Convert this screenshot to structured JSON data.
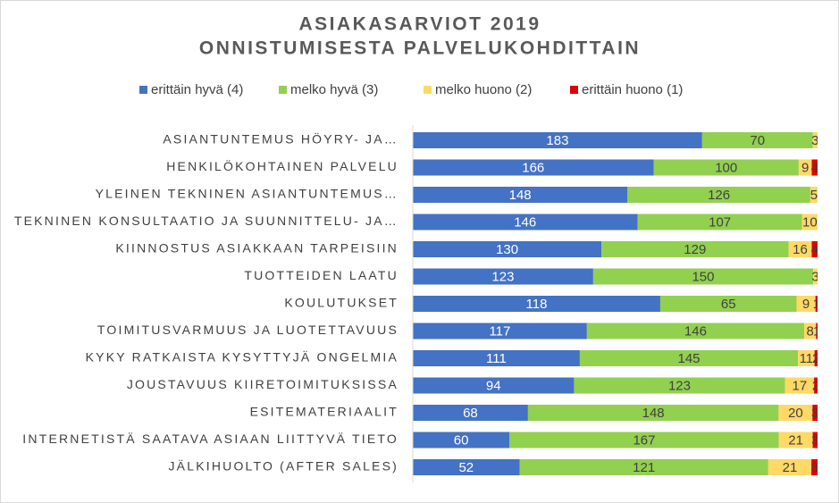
{
  "chart_data": {
    "type": "stacked-bar-100",
    "title": [
      "ASIAKASARVIOT 2019",
      "ONNISTUMISESTA PALVELUKOHDITTAIN"
    ],
    "categories": [
      "ASIANTUNTEMUS HÖYRY- JA…",
      "HENKILÖKOHTAINEN PALVELU",
      "YLEINEN TEKNINEN ASIANTUNTEMUS…",
      "TEKNINEN KONSULTAATIO JA SUUNNITTELU- JA…",
      "KIINNOSTUS ASIAKKAAN TARPEISIIN",
      "TUOTTEIDEN LAATU",
      "KOULUTUKSET",
      "TOIMITUSVARMUUS JA LUOTETTAVUUS",
      "KYKY RATKAISTA KYSYTTYJÄ ONGELMIA",
      "JOUSTAVUUS KIIRETOIMITUKSISSA",
      "ESITEMATERIAALIT",
      "INTERNETISTÄ SAATAVA ASIAAN LIITTYVÄ TIETO",
      "JÄLKIHUOLTO (AFTER SALES)"
    ],
    "series": [
      {
        "name": "erittäin hyvä (4)",
        "color": "#4472c4",
        "label_color": "#ffffff",
        "values": [
          183,
          166,
          148,
          146,
          130,
          123,
          118,
          117,
          111,
          94,
          68,
          60,
          52
        ]
      },
      {
        "name": "melko hyvä (3)",
        "color": "#92d050",
        "label_color": "#404040",
        "values": [
          70,
          100,
          126,
          107,
          129,
          150,
          65,
          146,
          145,
          123,
          148,
          167,
          121
        ]
      },
      {
        "name": "melko huono (2)",
        "color": "#ffd966",
        "label_color": "#404040",
        "values": [
          3,
          9,
          5,
          10,
          16,
          3,
          9,
          8,
          11,
          17,
          20,
          21,
          21
        ]
      },
      {
        "name": "erittäin huono (1)",
        "color": "#e00000",
        "label_color": "#404040",
        "values": [
          null,
          4,
          null,
          null,
          4,
          null,
          1,
          1,
          2,
          2,
          3,
          3,
          3
        ]
      }
    ]
  }
}
